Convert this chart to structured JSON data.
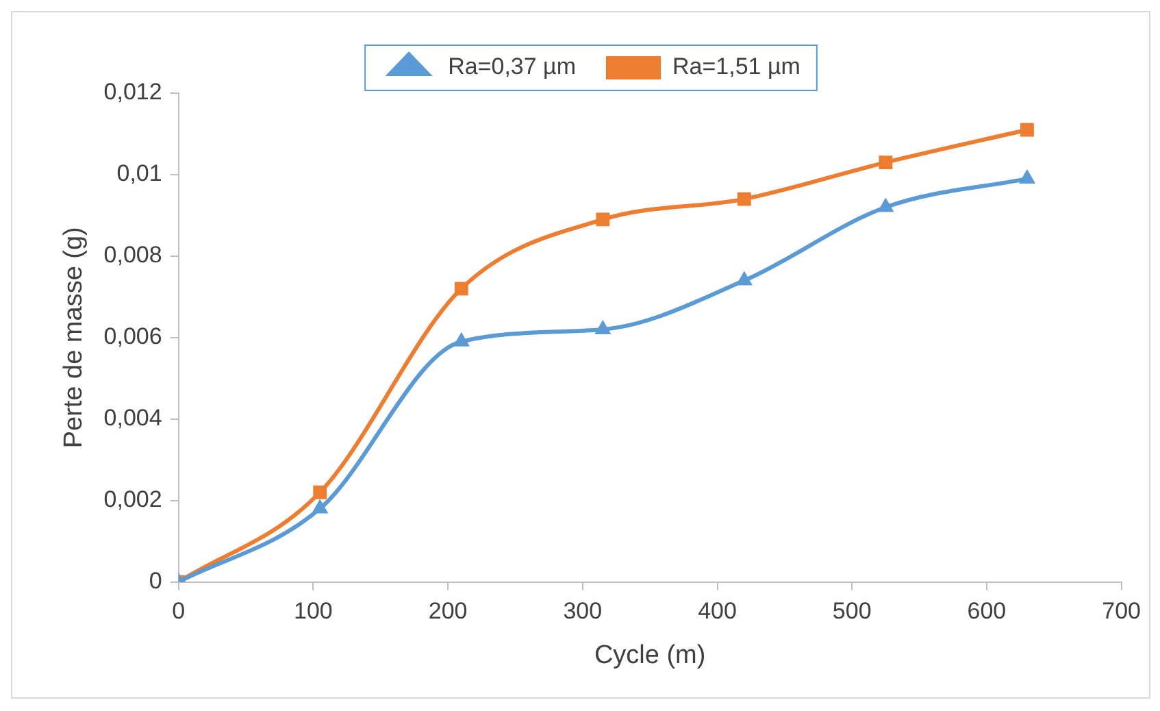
{
  "chart_data": {
    "type": "line",
    "xlabel": "Cycle (m)",
    "ylabel": "Perte de masse (g)",
    "x": [
      0,
      105,
      210,
      315,
      420,
      525,
      630
    ],
    "series": [
      {
        "name": "Ra=0,37 µm",
        "color": "#5b9bd5",
        "marker": "triangle",
        "values": [
          0,
          0.0018,
          0.0059,
          0.0062,
          0.0074,
          0.0092,
          0.0099
        ]
      },
      {
        "name": "Ra=1,51 µm",
        "color": "#ed7d31",
        "marker": "square",
        "values": [
          0,
          0.0022,
          0.0072,
          0.0089,
          0.0094,
          0.0103,
          0.0111
        ]
      }
    ],
    "xlim": [
      0,
      700
    ],
    "xticks": [
      0,
      100,
      200,
      300,
      400,
      500,
      600,
      700
    ],
    "ylim": [
      0,
      0.012
    ],
    "yticks": [
      0,
      {
        "value": 0.002,
        "label": "0,002"
      },
      {
        "value": 0.004,
        "label": "0,004"
      },
      {
        "value": 0.006,
        "label": "0,006"
      },
      {
        "value": 0.008,
        "label": "0,008"
      },
      {
        "value": 0.01,
        "label": "0,01"
      },
      {
        "value": 0.012,
        "label": "0,012"
      }
    ],
    "grid": false,
    "legend": "top",
    "line_style": "solid"
  }
}
